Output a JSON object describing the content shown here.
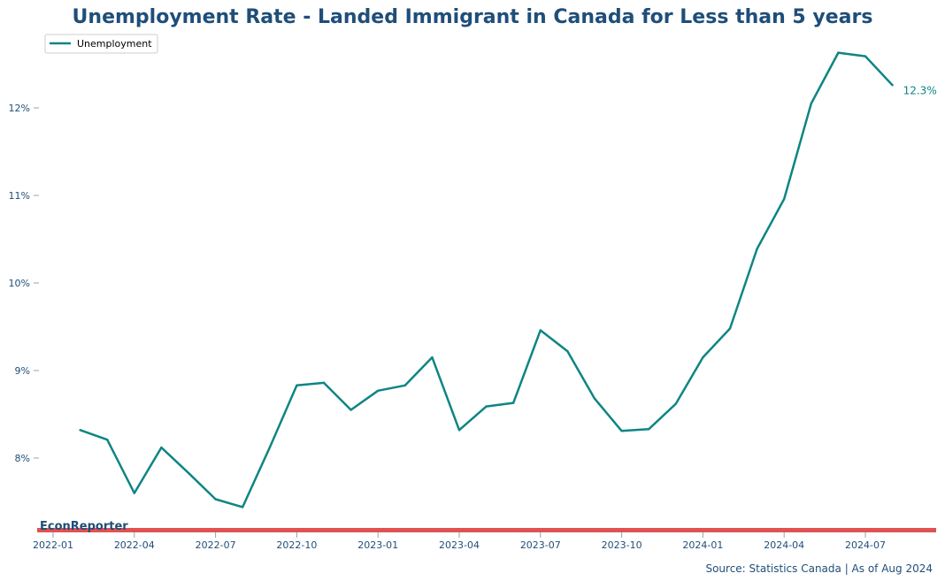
{
  "chart_data": {
    "type": "line",
    "title": "Unemployment Rate - Landed Immigrant in Canada for Less than 5 years",
    "xlabel": "",
    "ylabel": "",
    "legend": {
      "placement": "top-left",
      "entries": [
        "Unemployment"
      ]
    },
    "grid": false,
    "ylim": [
      7.17,
      12.83
    ],
    "xlim": [
      "2021-12",
      "2024-10"
    ],
    "x_ticks": [
      "2022-01",
      "2022-04",
      "2022-07",
      "2022-10",
      "2023-01",
      "2023-04",
      "2023-07",
      "2023-10",
      "2024-01",
      "2024-04",
      "2024-07"
    ],
    "y_ticks": [
      8,
      9,
      10,
      11,
      12
    ],
    "y_tick_labels": [
      "8%",
      "9%",
      "10%",
      "11%",
      "12%"
    ],
    "series": [
      {
        "name": "Unemployment",
        "color": "#0e8584",
        "x": [
          "2022-02",
          "2022-03",
          "2022-04",
          "2022-05",
          "2022-06",
          "2022-07",
          "2022-08",
          "2022-09",
          "2022-10",
          "2022-11",
          "2022-12",
          "2023-01",
          "2023-02",
          "2023-03",
          "2023-04",
          "2023-05",
          "2023-06",
          "2023-07",
          "2023-08",
          "2023-09",
          "2023-10",
          "2023-11",
          "2023-12",
          "2024-01",
          "2024-02",
          "2024-03",
          "2024-04",
          "2024-05",
          "2024-06",
          "2024-07",
          "2024-08"
        ],
        "values": [
          8.32,
          8.21,
          7.6,
          8.12,
          7.83,
          7.53,
          7.44,
          8.12,
          8.83,
          8.86,
          8.55,
          8.77,
          8.83,
          9.15,
          8.32,
          8.59,
          8.63,
          9.46,
          9.22,
          8.68,
          8.31,
          8.33,
          8.62,
          9.15,
          9.48,
          10.39,
          10.96,
          12.05,
          12.63,
          12.59,
          12.26
        ]
      }
    ],
    "annotations": [
      {
        "text": "12.3%",
        "x": "2024-08",
        "y": 12.26
      }
    ]
  },
  "branding": {
    "watermark": "EconReporter",
    "accent_color": "#e05252",
    "title_color": "#1f4e79"
  },
  "footer": {
    "source": "Source: Statistics Canada | As of Aug 2024"
  }
}
